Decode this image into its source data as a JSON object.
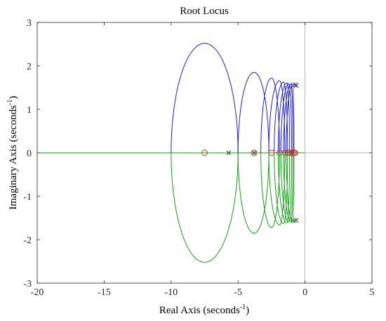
{
  "chart_data": {
    "type": "line",
    "title": "Root Locus",
    "xlabel": {
      "text": "Real Axis (seconds",
      "sup": "-1",
      "close": ")"
    },
    "ylabel": {
      "text": "Imaginary Axis (seconds",
      "sup": "-1",
      "close": ")"
    },
    "xlim": [
      -20,
      5
    ],
    "ylim": [
      -3,
      3
    ],
    "x_ticks": [
      -20,
      -15,
      -10,
      -5,
      0,
      5
    ],
    "y_ticks": [
      -3,
      -2,
      -1,
      0,
      1,
      2,
      3
    ],
    "grid": false,
    "reference_lines": {
      "x": 0,
      "y": 0
    },
    "colors": {
      "upper_branches": "#1f1fd6",
      "lower_branches": "#16a016",
      "real_axis_branch": "#16a016",
      "reference": "#b4b4b4",
      "zero_marker": "#c03030",
      "pole_marker": "#303030",
      "pole_cluster": [
        "#2aa6a6",
        "#c03030",
        "#1f1fd6",
        "#16a016"
      ]
    },
    "loci": [
      {
        "left": -10.0,
        "right": -5.0,
        "center": -7.5,
        "height": 2.52
      },
      {
        "left": -5.0,
        "right": -2.7,
        "center": -3.8,
        "height": 1.85
      },
      {
        "left": -3.3,
        "right": -1.9,
        "center": -2.5,
        "height": 1.72
      },
      {
        "left": -2.7,
        "right": -1.5,
        "center": -1.9,
        "height": 1.66
      },
      {
        "left": -2.3,
        "right": -1.3,
        "center": -1.6,
        "height": 1.63
      },
      {
        "left": -2.0,
        "right": -1.15,
        "center": -1.35,
        "height": 1.61
      },
      {
        "left": -1.8,
        "right": -1.0,
        "center": -1.2,
        "height": 1.59
      },
      {
        "left": -1.6,
        "right": -0.9,
        "center": -1.05,
        "height": 1.58
      },
      {
        "left": -1.4,
        "right": -0.82,
        "center": -0.95,
        "height": 1.57
      }
    ],
    "real_axis_branch": [
      -20,
      0
    ],
    "zeros": [
      -7.5,
      -3.8,
      -2.5,
      -1.9,
      -1.5,
      -1.25,
      -1.05,
      -0.9,
      -0.8,
      -0.75
    ],
    "poles_real": [
      -5.7,
      -3.8
    ],
    "pole_cluster": [
      {
        "x": -0.9,
        "y": 1.57
      },
      {
        "x": -0.75,
        "y": 1.56
      },
      {
        "x": -0.65,
        "y": 1.55
      },
      {
        "x": -0.9,
        "y": -1.57
      },
      {
        "x": -0.75,
        "y": -1.56
      },
      {
        "x": -0.65,
        "y": -1.55
      }
    ]
  }
}
